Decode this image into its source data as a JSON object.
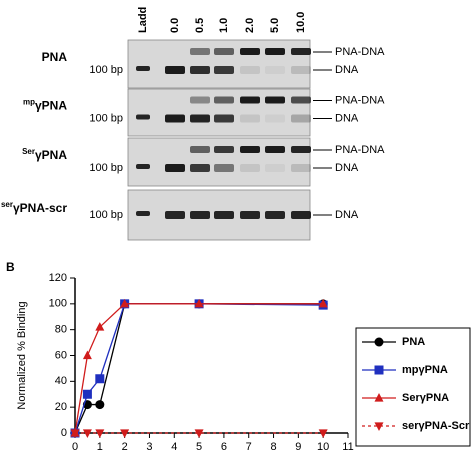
{
  "gel": {
    "columns": [
      "Ladd",
      "0.0",
      "0.5",
      "1.0",
      "2.0",
      "5.0",
      "10.0"
    ],
    "rows": [
      {
        "sup": "",
        "main": "PNA",
        "marker": "100 bp",
        "bands": [
          "PNA-DNA",
          "DNA"
        ]
      },
      {
        "sup": "mp",
        "main": "γPNA",
        "marker": "100 bp",
        "bands": [
          "PNA-DNA",
          "DNA"
        ]
      },
      {
        "sup": "Ser",
        "main": "γPNA",
        "marker": "100 bp",
        "bands": [
          "PNA-DNA",
          "DNA"
        ]
      },
      {
        "sup": "ser",
        "main": "γPNA-scr",
        "marker": "100 bp",
        "bands": [
          "DNA"
        ]
      }
    ]
  },
  "panel_label": "B",
  "chart_data": {
    "type": "line",
    "ylabel": "Normalized % Binding",
    "x": [
      0,
      0.5,
      1,
      2,
      5,
      10
    ],
    "series": [
      {
        "name": "PNA",
        "color": "#000000",
        "marker": "circle",
        "linestyle": "solid",
        "values": [
          0,
          22,
          22,
          100,
          100,
          100
        ]
      },
      {
        "name": "mpγPNA",
        "color": "#1f2fbf",
        "marker": "square",
        "linestyle": "solid",
        "values": [
          0,
          30,
          42,
          100,
          100,
          99
        ]
      },
      {
        "name": "SerγPNA",
        "color": "#d01c1c",
        "marker": "triangle-up",
        "linestyle": "solid",
        "values": [
          0,
          60,
          82,
          100,
          100,
          100
        ]
      },
      {
        "name": "serγPNA-Scr",
        "color": "#d01c1c",
        "marker": "triangle-down",
        "linestyle": "dashed",
        "values": [
          0,
          0,
          0,
          0,
          0,
          0
        ]
      }
    ],
    "xlim": [
      0,
      11
    ],
    "xticks": [
      0,
      1,
      2,
      3,
      4,
      5,
      6,
      7,
      8,
      9,
      10,
      11
    ],
    "ylim": [
      0,
      120
    ],
    "yticks": [
      0,
      20,
      40,
      60,
      80,
      100,
      120
    ]
  }
}
